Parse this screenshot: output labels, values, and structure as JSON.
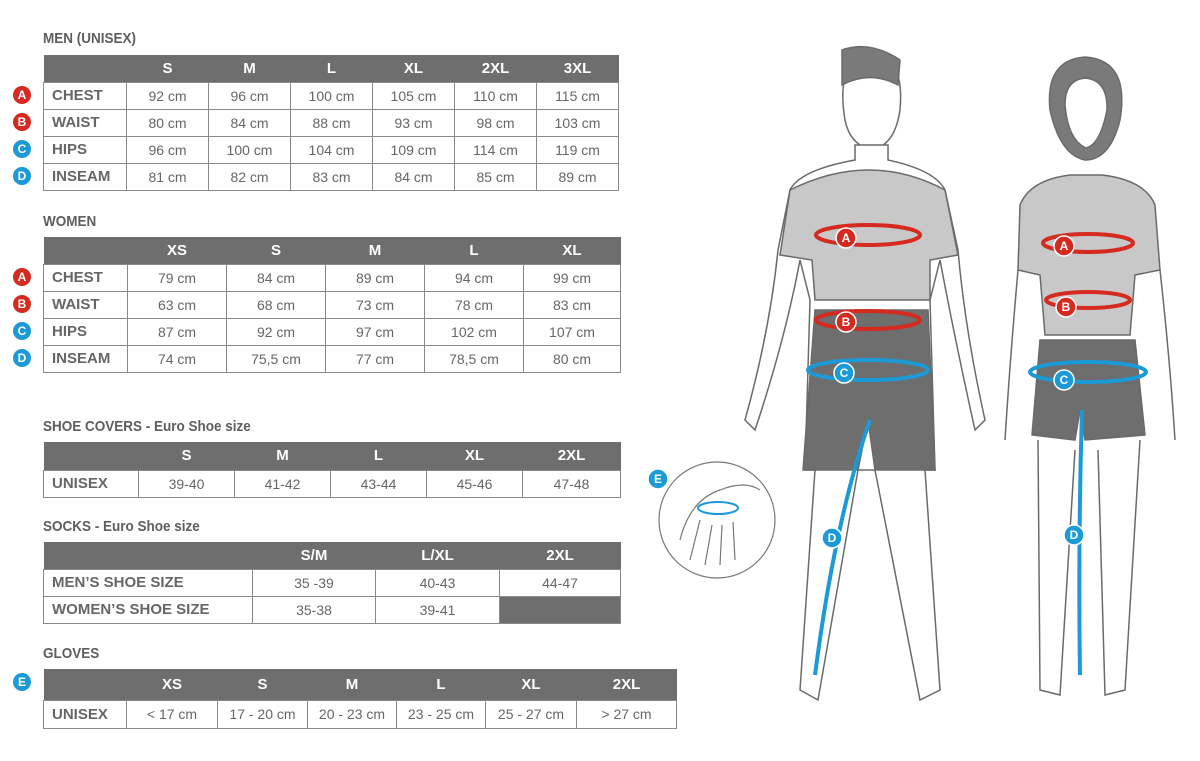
{
  "colors": {
    "header": "#6e6e6e",
    "red": "#d42a20",
    "blue": "#1b9ad7"
  },
  "men": {
    "title": "MEN (UNISEX)",
    "headers": [
      "",
      "S",
      "M",
      "L",
      "XL",
      "2XL",
      "3XL"
    ],
    "rows": [
      {
        "badge": "A",
        "label": "CHEST",
        "values": [
          "92 cm",
          "96 cm",
          "100 cm",
          "105 cm",
          "110 cm",
          "115 cm"
        ]
      },
      {
        "badge": "B",
        "label": "WAIST",
        "values": [
          "80 cm",
          "84 cm",
          "88 cm",
          "93 cm",
          "98 cm",
          "103 cm"
        ]
      },
      {
        "badge": "C",
        "label": "HIPS",
        "values": [
          "96 cm",
          "100 cm",
          "104 cm",
          "109 cm",
          "114 cm",
          "119 cm"
        ]
      },
      {
        "badge": "D",
        "label": "INSEAM",
        "values": [
          "81 cm",
          "82 cm",
          "83 cm",
          "84 cm",
          "85 cm",
          "89 cm"
        ]
      }
    ]
  },
  "women": {
    "title": "WOMEN",
    "headers": [
      "",
      "XS",
      "S",
      "M",
      "L",
      "XL"
    ],
    "rows": [
      {
        "badge": "A",
        "label": "CHEST",
        "values": [
          "79 cm",
          "84 cm",
          "89 cm",
          "94 cm",
          "99 cm"
        ]
      },
      {
        "badge": "B",
        "label": "WAIST",
        "values": [
          "63 cm",
          "68 cm",
          "73 cm",
          "78 cm",
          "83 cm"
        ]
      },
      {
        "badge": "C",
        "label": "HIPS",
        "values": [
          "87 cm",
          "92 cm",
          "97 cm",
          "102 cm",
          "107 cm"
        ]
      },
      {
        "badge": "D",
        "label": "INSEAM",
        "values": [
          "74 cm",
          "75,5 cm",
          "77 cm",
          "78,5 cm",
          "80 cm"
        ]
      }
    ]
  },
  "shoe_covers": {
    "title": "SHOE COVERS - Euro Shoe size",
    "headers": [
      "",
      "S",
      "M",
      "L",
      "XL",
      "2XL"
    ],
    "rows": [
      {
        "label": "UNISEX",
        "values": [
          "39-40",
          "41-42",
          "43-44",
          "45-46",
          "47-48"
        ]
      }
    ]
  },
  "socks": {
    "title": "SOCKS - Euro Shoe size",
    "headers": [
      "",
      "S/M",
      "L/XL",
      "2XL"
    ],
    "rows": [
      {
        "label": "MEN’S SHOE SIZE",
        "values": [
          "35 -39",
          "40-43",
          "44-47"
        ]
      },
      {
        "label": "WOMEN’S SHOE SIZE",
        "values": [
          "35-38",
          "39-41",
          ""
        ]
      }
    ]
  },
  "gloves": {
    "title": "GLOVES",
    "badge": "E",
    "headers": [
      "",
      "XS",
      "S",
      "M",
      "L",
      "XL",
      "2XL"
    ],
    "rows": [
      {
        "label": "UNISEX",
        "values": [
          "< 17 cm",
          "17 - 20 cm",
          "20 - 23 cm",
          "23 - 25 cm",
          "25 - 27 cm",
          "> 27 cm"
        ]
      }
    ]
  },
  "figure": {
    "markers": [
      "A",
      "B",
      "C",
      "D",
      "E"
    ]
  }
}
